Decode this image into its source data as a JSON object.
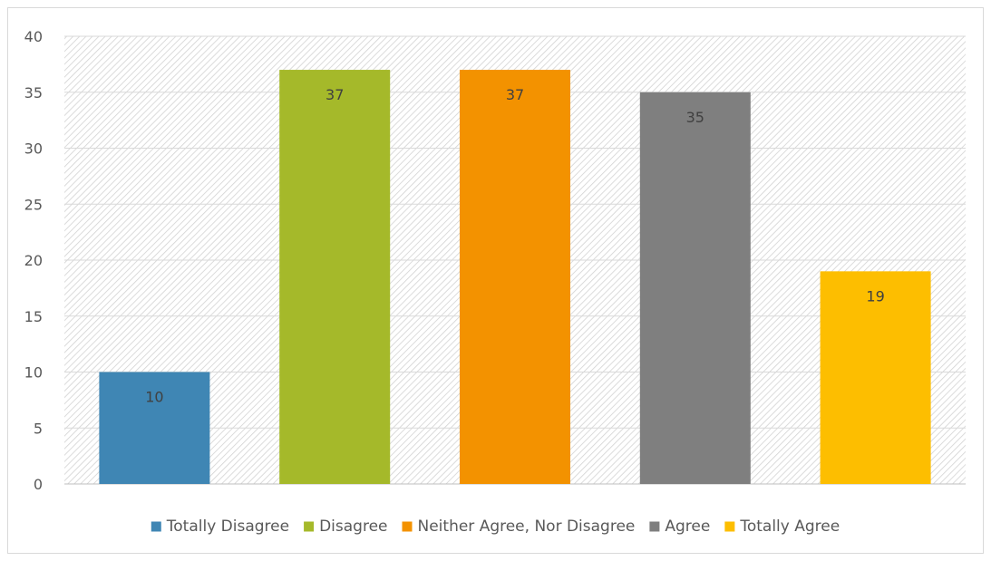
{
  "chart_data": {
    "type": "bar",
    "title": "",
    "xlabel": "",
    "ylabel": "",
    "ylim": [
      0,
      40
    ],
    "yticks": [
      0,
      5,
      10,
      15,
      20,
      25,
      30,
      35,
      40
    ],
    "grid": true,
    "plot_background": "diagonal-hatch",
    "legend_position": "bottom",
    "categories": [
      "Totally Disagree",
      "Disagree",
      "Neither Agree, Nor Disagree",
      "Agree",
      "Totally Agree"
    ],
    "values": [
      10,
      37,
      37,
      35,
      19
    ],
    "colors": [
      "#3f86b4",
      "#a5b92a",
      "#f39200",
      "#7f7f7f",
      "#fdbe00"
    ],
    "data_labels": [
      "10",
      "37",
      "37",
      "35",
      "19"
    ]
  }
}
